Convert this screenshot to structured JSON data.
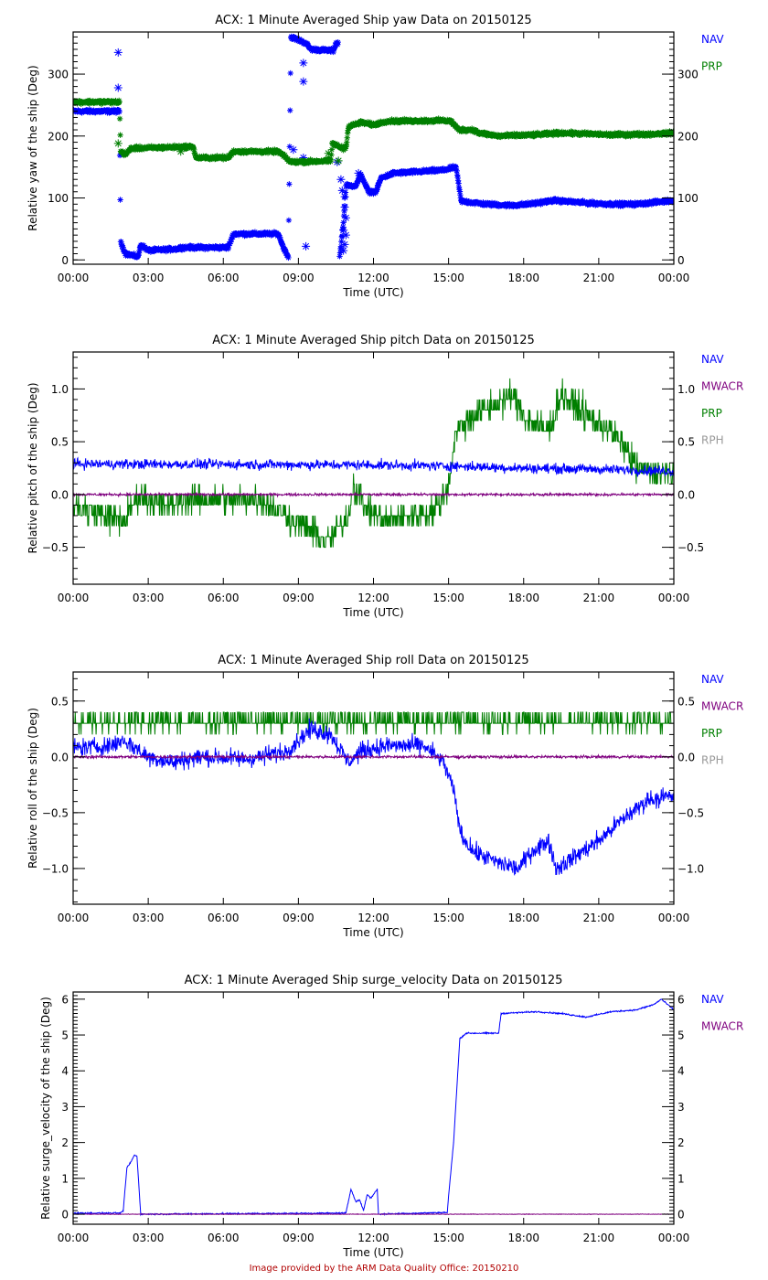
{
  "footer": "Image provided by the ARM Data Quality Office: 20150210",
  "colors": {
    "NAV": "#0000ff",
    "MWACR": "#7f007f",
    "PRP": "#007f00",
    "RPH": "#999999"
  },
  "chart_data": [
    {
      "type": "scatter",
      "title": "ACX: 1 Minute Averaged Ship yaw Data on 20150125",
      "xlabel": "Time (UTC)",
      "ylabel": "Relative yaw of the ship (Deg)",
      "xlim": [
        0,
        24
      ],
      "ylim": [
        -7,
        368
      ],
      "xticks": [
        "00:00",
        "03:00",
        "06:00",
        "09:00",
        "12:00",
        "15:00",
        "18:00",
        "21:00",
        "00:00"
      ],
      "yticks": [
        0,
        100,
        200,
        300
      ],
      "ytick_labels": [
        "0",
        "100",
        "200",
        "300"
      ],
      "yminor_step": 10,
      "legend": [
        "NAV",
        "PRP"
      ],
      "legend_placement": "right",
      "marker": "asterisk",
      "series": [
        {
          "name": "NAV",
          "noise": 4,
          "points": [
            [
              0,
              240
            ],
            [
              1.85,
              240
            ],
            [
              1.9,
              28
            ],
            [
              2.1,
              10
            ],
            [
              2.6,
              5
            ],
            [
              2.7,
              25
            ],
            [
              3.0,
              15
            ],
            [
              4.2,
              18
            ],
            [
              4.3,
              20
            ],
            [
              6.2,
              20
            ],
            [
              6.4,
              42
            ],
            [
              8.2,
              42
            ],
            [
              8.4,
              20
            ],
            [
              8.6,
              5
            ],
            [
              8.7,
              360
            ],
            [
              9.3,
              350
            ],
            [
              9.5,
              340
            ],
            [
              10.4,
              338
            ],
            [
              10.5,
              350
            ],
            [
              10.6,
              350
            ]
          ],
          "gap_after": 10.6,
          "points2": [
            [
              10.65,
              5
            ],
            [
              10.8,
              60
            ],
            [
              10.9,
              120
            ],
            [
              11.3,
              120
            ],
            [
              11.5,
              138
            ],
            [
              11.8,
              110
            ],
            [
              12.1,
              110
            ],
            [
              12.3,
              132
            ],
            [
              12.8,
              140
            ],
            [
              14.8,
              145
            ],
            [
              15.3,
              150
            ],
            [
              15.5,
              95
            ],
            [
              16.5,
              90
            ],
            [
              17.5,
              88
            ],
            [
              18.2,
              90
            ],
            [
              19.2,
              96
            ],
            [
              20.5,
              92
            ],
            [
              21.5,
              90
            ],
            [
              22.5,
              90
            ],
            [
              24,
              96
            ]
          ],
          "outliers": [
            [
              1.8,
              335
            ],
            [
              1.8,
              278
            ],
            [
              8.8,
              178
            ],
            [
              9.2,
              165
            ],
            [
              9.3,
              22
            ],
            [
              9.2,
              318
            ],
            [
              9.2,
              288
            ],
            [
              10.55,
              158
            ],
            [
              10.7,
              130
            ],
            [
              10.75,
              112
            ],
            [
              10.85,
              102
            ],
            [
              10.85,
              85
            ],
            [
              10.9,
              68
            ],
            [
              10.8,
              48
            ],
            [
              10.9,
              40
            ],
            [
              10.85,
              25
            ],
            [
              10.8,
              15
            ],
            [
              11.4,
              140
            ]
          ]
        },
        {
          "name": "PRP",
          "noise": 4,
          "points": [
            [
              0,
              255
            ],
            [
              1.85,
              255
            ],
            [
              1.9,
              175
            ],
            [
              2.1,
              170
            ],
            [
              2.3,
              180
            ],
            [
              4.8,
              183
            ],
            [
              4.9,
              165
            ],
            [
              6.2,
              165
            ],
            [
              6.4,
              175
            ],
            [
              8.2,
              175
            ],
            [
              8.5,
              165
            ],
            [
              8.7,
              158
            ],
            [
              10.3,
              160
            ],
            [
              10.35,
              188
            ],
            [
              10.8,
              180
            ],
            [
              10.9,
              182
            ],
            [
              11.0,
              215
            ],
            [
              11.5,
              222
            ],
            [
              12.0,
              218
            ],
            [
              12.5,
              224
            ],
            [
              14.8,
              225
            ],
            [
              15.1,
              224
            ],
            [
              15.4,
              210
            ],
            [
              16.0,
              210
            ],
            [
              16.2,
              205
            ],
            [
              17.0,
              200
            ],
            [
              18.5,
              202
            ],
            [
              19.5,
              205
            ],
            [
              21.5,
              202
            ],
            [
              23.0,
              203
            ],
            [
              24,
              205
            ]
          ],
          "outliers": [
            [
              1.8,
              188
            ],
            [
              4.3,
              175
            ],
            [
              10.2,
              172
            ],
            [
              10.6,
              160
            ]
          ]
        }
      ]
    },
    {
      "type": "line",
      "title": "ACX: 1 Minute Averaged Ship pitch Data on 20150125",
      "xlabel": "Time (UTC)",
      "ylabel": "Relative pitch of the ship (Deg)",
      "xlim": [
        0,
        24
      ],
      "ylim": [
        -0.85,
        1.35
      ],
      "xticks": [
        "00:00",
        "03:00",
        "06:00",
        "09:00",
        "12:00",
        "15:00",
        "18:00",
        "21:00",
        "00:00"
      ],
      "yticks": [
        -0.5,
        0.0,
        0.5,
        1.0
      ],
      "ytick_labels": [
        "−0.5",
        "0.0",
        "0.5",
        "1.0"
      ],
      "yminor_step": 0.1,
      "legend": [
        "NAV",
        "MWACR",
        "PRP",
        "RPH"
      ],
      "legend_placement": "right",
      "series": [
        {
          "name": "PRP",
          "noise": 0.2,
          "quant": 0.1,
          "points": [
            [
              0,
              -0.1
            ],
            [
              2.0,
              -0.25
            ],
            [
              2.6,
              0.0
            ],
            [
              3.5,
              -0.1
            ],
            [
              4.5,
              -0.05
            ],
            [
              6.0,
              -0.05
            ],
            [
              7.5,
              -0.05
            ],
            [
              8.5,
              -0.2
            ],
            [
              9.5,
              -0.35
            ],
            [
              10.2,
              -0.45
            ],
            [
              11.0,
              -0.2
            ],
            [
              11.2,
              0.1
            ],
            [
              11.8,
              -0.15
            ],
            [
              12.5,
              -0.25
            ],
            [
              13.5,
              -0.2
            ],
            [
              14.5,
              -0.15
            ],
            [
              15.0,
              0.1
            ],
            [
              15.3,
              0.6
            ],
            [
              16.0,
              0.75
            ],
            [
              16.5,
              0.8
            ],
            [
              17.5,
              0.95
            ],
            [
              18.2,
              0.7
            ],
            [
              19.0,
              0.6
            ],
            [
              19.5,
              0.95
            ],
            [
              20.5,
              0.75
            ],
            [
              21.5,
              0.6
            ],
            [
              22.0,
              0.45
            ],
            [
              22.5,
              0.25
            ],
            [
              23.5,
              0.2
            ],
            [
              24,
              0.2
            ]
          ]
        },
        {
          "name": "NAV",
          "noise": 0.07,
          "quant": 0,
          "points": [
            [
              0,
              0.29
            ],
            [
              12,
              0.28
            ],
            [
              15,
              0.27
            ],
            [
              18,
              0.25
            ],
            [
              21,
              0.24
            ],
            [
              24,
              0.22
            ]
          ]
        },
        {
          "name": "MWACR",
          "noise": 0.018,
          "quant": 0,
          "points": [
            [
              0,
              0.0
            ],
            [
              24,
              0.0
            ]
          ]
        }
      ]
    },
    {
      "type": "line",
      "title": "ACX: 1 Minute Averaged Ship roll Data on 20150125",
      "xlabel": "Time (UTC)",
      "ylabel": "Relative roll of the ship (Deg)",
      "xlim": [
        0,
        24
      ],
      "ylim": [
        -1.32,
        0.76
      ],
      "xticks": [
        "00:00",
        "03:00",
        "06:00",
        "09:00",
        "12:00",
        "15:00",
        "18:00",
        "21:00",
        "00:00"
      ],
      "yticks": [
        -1.0,
        -0.5,
        0.0,
        0.5
      ],
      "ytick_labels": [
        "−1.0",
        "−0.5",
        "0.0",
        "0.5"
      ],
      "yminor_step": 0.1,
      "legend": [
        "NAV",
        "MWACR",
        "PRP",
        "RPH"
      ],
      "legend_placement": "right",
      "series": [
        {
          "name": "PRP",
          "noise": 0.13,
          "quant": 0.1,
          "points": [
            [
              0,
              0.32
            ],
            [
              24,
              0.32
            ]
          ]
        },
        {
          "name": "NAV",
          "noise": 0.12,
          "quant": 0,
          "points": [
            [
              0,
              0.08
            ],
            [
              1.5,
              0.1
            ],
            [
              2.0,
              0.15
            ],
            [
              3.0,
              0.0
            ],
            [
              4.0,
              -0.05
            ],
            [
              5.0,
              0.0
            ],
            [
              7.0,
              -0.02
            ],
            [
              8.5,
              0.05
            ],
            [
              9.5,
              0.25
            ],
            [
              10.3,
              0.2
            ],
            [
              11.0,
              -0.05
            ],
            [
              11.5,
              0.05
            ],
            [
              12.5,
              0.1
            ],
            [
              14.0,
              0.1
            ],
            [
              14.8,
              -0.05
            ],
            [
              15.2,
              -0.3
            ],
            [
              15.5,
              -0.7
            ],
            [
              16.0,
              -0.85
            ],
            [
              17.0,
              -0.95
            ],
            [
              17.8,
              -1.0
            ],
            [
              18.3,
              -0.85
            ],
            [
              19.0,
              -0.75
            ],
            [
              19.3,
              -1.0
            ],
            [
              20.0,
              -0.9
            ],
            [
              21.0,
              -0.75
            ],
            [
              22.0,
              -0.55
            ],
            [
              23.0,
              -0.38
            ],
            [
              24,
              -0.35
            ]
          ]
        },
        {
          "name": "MWACR",
          "noise": 0.018,
          "quant": 0,
          "points": [
            [
              0,
              0.0
            ],
            [
              24,
              0.0
            ]
          ]
        }
      ]
    },
    {
      "type": "line",
      "title": "ACX: 1 Minute Averaged Ship surge_velocity Data on 20150125",
      "xlabel": "Time (UTC)",
      "ylabel": "Relative surge_velocity of the ship (Deg)",
      "xlim": [
        0,
        24
      ],
      "ylim": [
        -0.28,
        6.2
      ],
      "xticks": [
        "00:00",
        "03:00",
        "06:00",
        "09:00",
        "12:00",
        "15:00",
        "18:00",
        "21:00",
        "00:00"
      ],
      "yticks": [
        0,
        1,
        2,
        3,
        4,
        5,
        6
      ],
      "ytick_labels": [
        "0",
        "1",
        "2",
        "3",
        "4",
        "5",
        "6"
      ],
      "yminor_step": 0.1,
      "legend": [
        "NAV",
        "MWACR"
      ],
      "legend_placement": "right",
      "series": [
        {
          "name": "NAV",
          "noise": 0.03,
          "quant": 0,
          "points": [
            [
              0,
              0.03
            ],
            [
              1.9,
              0.03
            ],
            [
              2.0,
              0.1
            ],
            [
              2.15,
              1.3
            ],
            [
              2.3,
              1.45
            ],
            [
              2.45,
              1.65
            ],
            [
              2.55,
              1.62
            ],
            [
              2.7,
              0.0
            ],
            [
              10.9,
              0.03
            ],
            [
              11.1,
              0.7
            ],
            [
              11.3,
              0.35
            ],
            [
              11.45,
              0.4
            ],
            [
              11.6,
              0.1
            ],
            [
              11.75,
              0.55
            ],
            [
              11.9,
              0.45
            ],
            [
              12.15,
              0.7
            ],
            [
              12.2,
              0.0
            ],
            [
              14.95,
              0.05
            ],
            [
              15.0,
              0.5
            ],
            [
              15.2,
              2.0
            ],
            [
              15.45,
              4.9
            ],
            [
              15.7,
              5.05
            ],
            [
              17.0,
              5.05
            ],
            [
              17.1,
              5.6
            ],
            [
              18.5,
              5.65
            ],
            [
              19.5,
              5.6
            ],
            [
              20.5,
              5.5
            ],
            [
              21.5,
              5.65
            ],
            [
              22.5,
              5.7
            ],
            [
              23.2,
              5.85
            ],
            [
              23.5,
              6.0
            ],
            [
              24,
              5.7
            ]
          ]
        },
        {
          "name": "MWACR",
          "noise": 0.012,
          "quant": 0,
          "points": [
            [
              0,
              0.0
            ],
            [
              24,
              0.0
            ]
          ]
        }
      ]
    }
  ]
}
